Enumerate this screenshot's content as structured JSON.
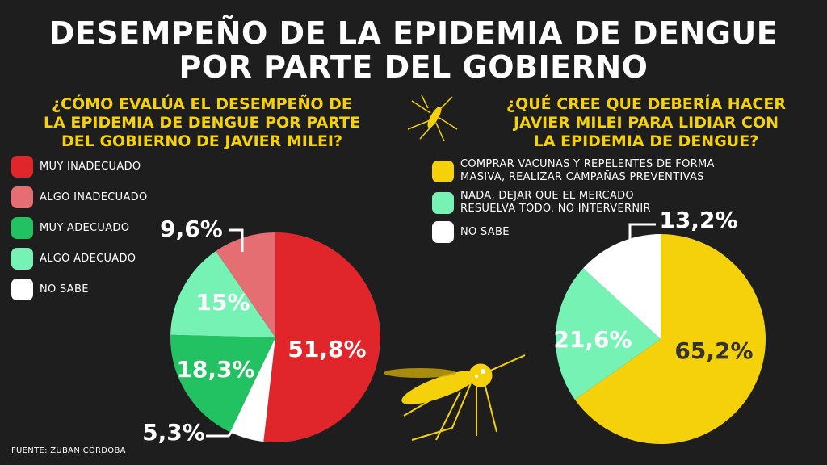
{
  "title_line1": "DESEMPEÑO DE LA EPIDEMIA DE DENGUE",
  "title_line2": "POR PARTE DEL GOBIERNO",
  "source": "FUENTE: ZUBAN CÓRDOBA",
  "icons": [
    "mosquito-icon"
  ],
  "chart_data": [
    {
      "type": "pie",
      "title": "¿CÓMO EVALÚA EL DESEMPEÑO DE LA EPIDEMIA DE DENGUE POR PARTE DEL GOBIERNO DE JAVIER MILEI?",
      "title_lines": [
        "¿CÓMO EVALÚA EL DESEMPEÑO DE",
        "LA EPIDEMIA DE DENGUE POR PARTE",
        "DEL GOBIERNO DE JAVIER MILEI?"
      ],
      "legend": "left",
      "slices": [
        {
          "label": "MUY INADECUADO",
          "value": 51.8,
          "text": "51,8%",
          "color": "#e0262b"
        },
        {
          "label": "NO SABE",
          "value": 5.3,
          "text": "5,3%",
          "color": "#ffffff"
        },
        {
          "label": "MUY ADECUADO",
          "value": 18.3,
          "text": "18,3%",
          "color": "#22c262"
        },
        {
          "label": "ALGO ADECUADO",
          "value": 15,
          "text": "15%",
          "color": "#76f2b4"
        },
        {
          "label": "ALGO INADECUADO",
          "value": 9.6,
          "text": "9,6%",
          "color": "#e56e73"
        }
      ],
      "legend_order": [
        0,
        4,
        2,
        3,
        1
      ]
    },
    {
      "type": "pie",
      "title": "¿QUÉ CREE QUE DEBERÍA HACER JAVIER MILEI PARA LIDIAR CON LA EPIDEMIA DE DENGUE?",
      "title_lines": [
        "¿QUÉ CREE QUE DEBERÍA HACER",
        "JAVIER MILEI PARA LIDIAR CON",
        "LA EPIDEMIA DE DENGUE?"
      ],
      "legend": "top",
      "slices": [
        {
          "label": "COMPRAR VACUNAS Y REPELENTES DE FORMA MASIVA, REALIZAR CAMPAÑAS PREVENTIVAS",
          "label_lines": [
            "COMPRAR VACUNAS Y REPELENTES DE FORMA",
            "MASIVA, REALIZAR CAMPAÑAS PREVENTIVAS"
          ],
          "value": 65.2,
          "text": "65,2%",
          "color": "#f4d10b"
        },
        {
          "label": "NADA, DEJAR QUE EL MERCADO RESUELVA TODO. NO INTERVERNIR",
          "label_lines": [
            "NADA, DEJAR QUE EL MERCADO",
            "RESUELVA TODO. NO INTERVERNIR"
          ],
          "value": 21.6,
          "text": "21,6%",
          "color": "#76f2b4"
        },
        {
          "label": "NO SABE",
          "label_lines": [
            "NO SABE"
          ],
          "value": 13.2,
          "text": "13,2%",
          "color": "#ffffff"
        }
      ]
    }
  ]
}
